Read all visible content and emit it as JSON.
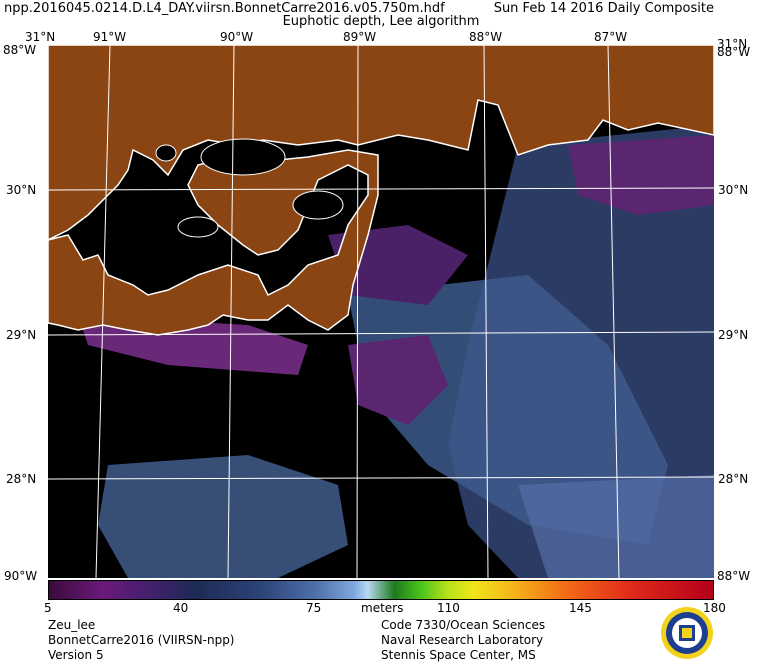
{
  "header": {
    "filename": "npp.2016045.0214.D.L4_DAY.viirsn.BonnetCarre2016.v05.750m.hdf",
    "date": "Sun Feb 14 2016 Daily Composite",
    "product": "Euphotic depth, Lee algorithm"
  },
  "axes": {
    "top_lon": [
      "91°W",
      "90°W",
      "89°W",
      "88°W",
      "87°W"
    ],
    "corner_top_left": "31°N",
    "corner_top_right": "31°N",
    "corner_top_left_lon": "88°W",
    "corner_top_right_lon": "88°W",
    "lat_left": [
      "30°N",
      "29°N",
      "28°N"
    ],
    "lat_right": [
      "30°N",
      "29°N",
      "28°N"
    ],
    "corner_bottom_left": "90°W",
    "corner_bottom_right": "88°W"
  },
  "colorbar": {
    "ticks": [
      "5",
      "40",
      "75",
      "110",
      "145",
      "180"
    ],
    "unit": "meters",
    "min": 5,
    "max": 180
  },
  "footer": {
    "left": [
      "Zeu_lee",
      "BonnetCarre2016 (VIIRSN-npp)",
      "Version 5"
    ],
    "right": [
      "Code 7330/Ocean Sciences",
      "Naval Research Laboratory",
      "Stennis Space Center, MS"
    ]
  },
  "colors": {
    "land": "#8b4513",
    "no_data": "#000000",
    "coastline": "#ffffff",
    "grid": "#ffffff"
  },
  "logo": {
    "icon": "nrl-seal-icon"
  }
}
